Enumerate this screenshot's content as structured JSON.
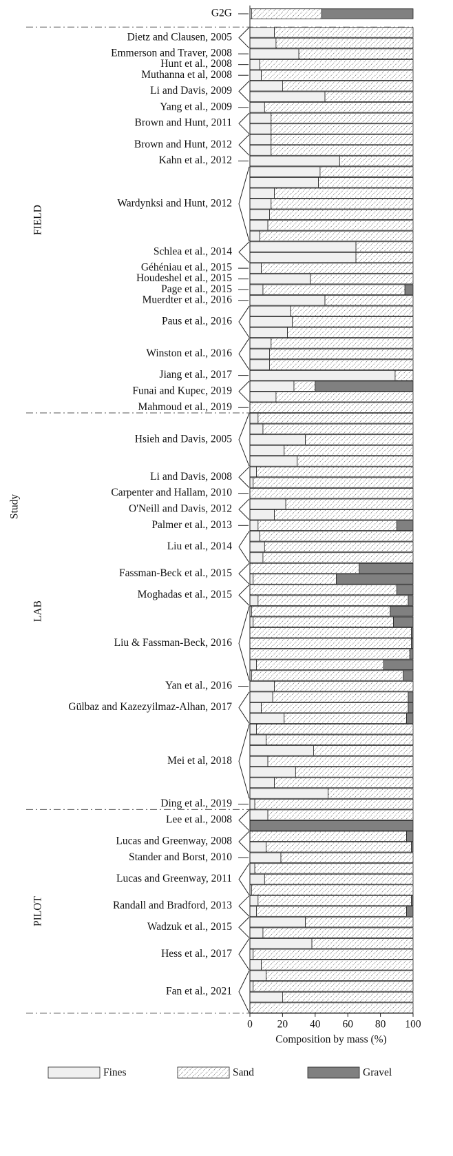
{
  "chart_data": {
    "type": "grouped-stacked-barh",
    "xlabel": "Composition by mass (%)",
    "ylabel": "Study",
    "xlim": [
      0,
      100
    ],
    "xticks": [
      0,
      20,
      40,
      60,
      80,
      100
    ],
    "series": [
      {
        "key": "fines",
        "name": "Fines",
        "color": "#f0f0f0",
        "hatch": false
      },
      {
        "key": "sand",
        "name": "Sand",
        "color": "#ffffff",
        "hatch": true
      },
      {
        "key": "gravel",
        "name": "Gravel",
        "color": "#808080",
        "hatch": false
      }
    ],
    "groups": [
      {
        "name": null,
        "studies": [
          {
            "label": "G2G",
            "fines": [
              1
            ],
            "sand": [
              43
            ],
            "gravel": [
              56
            ]
          }
        ]
      },
      {
        "name": "FIELD",
        "studies": [
          {
            "label": "Dietz and Clausen, 2005",
            "fines": [
              15,
              16
            ],
            "sand": [
              85,
              84
            ],
            "gravel": [
              0,
              0
            ]
          },
          {
            "label": "Emmerson and Traver, 2008",
            "fines": [
              30
            ],
            "sand": [
              70
            ],
            "gravel": [
              0
            ]
          },
          {
            "label": "Hunt et al., 2008",
            "fines": [
              6
            ],
            "sand": [
              94
            ],
            "gravel": [
              0
            ]
          },
          {
            "label": "Muthanna et al, 2008",
            "fines": [
              7
            ],
            "sand": [
              93
            ],
            "gravel": [
              0
            ]
          },
          {
            "label": "Li and Davis, 2009",
            "fines": [
              20,
              46
            ],
            "sand": [
              80,
              54
            ],
            "gravel": [
              0,
              0
            ]
          },
          {
            "label": "Yang et al., 2009",
            "fines": [
              9
            ],
            "sand": [
              91
            ],
            "gravel": [
              0
            ]
          },
          {
            "label": "Brown and Hunt, 2011",
            "fines": [
              13,
              13
            ],
            "sand": [
              87,
              87
            ],
            "gravel": [
              0,
              0
            ]
          },
          {
            "label": "Brown and Hunt, 2012",
            "fines": [
              13,
              13
            ],
            "sand": [
              87,
              87
            ],
            "gravel": [
              0,
              0
            ]
          },
          {
            "label": "Kahn et al., 2012",
            "fines": [
              55
            ],
            "sand": [
              45
            ],
            "gravel": [
              0
            ]
          },
          {
            "label": "Wardynksi and Hunt, 2012",
            "fines": [
              43,
              42,
              15,
              13,
              12,
              11,
              6
            ],
            "sand": [
              57,
              58,
              85,
              87,
              88,
              89,
              94
            ],
            "gravel": [
              0,
              0,
              0,
              0,
              0,
              0,
              0
            ]
          },
          {
            "label": "Schlea et al., 2014",
            "fines": [
              65,
              65
            ],
            "sand": [
              35,
              35
            ],
            "gravel": [
              0,
              0
            ]
          },
          {
            "label": "Géhéniau et al., 2015",
            "fines": [
              7
            ],
            "sand": [
              93
            ],
            "gravel": [
              0
            ]
          },
          {
            "label": "Houdeshel et al., 2015",
            "fines": [
              37
            ],
            "sand": [
              63
            ],
            "gravel": [
              0
            ]
          },
          {
            "label": "Page et al., 2015",
            "fines": [
              8
            ],
            "sand": [
              87
            ],
            "gravel": [
              5
            ]
          },
          {
            "label": "Muerdter et al., 2016",
            "fines": [
              46
            ],
            "sand": [
              54
            ],
            "gravel": [
              0
            ]
          },
          {
            "label": "Paus et al., 2016",
            "fines": [
              25,
              26,
              23
            ],
            "sand": [
              75,
              74,
              77
            ],
            "gravel": [
              0,
              0,
              0
            ]
          },
          {
            "label": "Winston et al., 2016",
            "fines": [
              13,
              12,
              12
            ],
            "sand": [
              87,
              88,
              88
            ],
            "gravel": [
              0,
              0,
              0
            ]
          },
          {
            "label": "Jiang et al., 2017",
            "fines": [
              89
            ],
            "sand": [
              11
            ],
            "gravel": [
              0
            ]
          },
          {
            "label": "Funai and Kupec, 2019",
            "fines": [
              27,
              16
            ],
            "sand": [
              13,
              84
            ],
            "gravel": [
              60,
              0
            ]
          },
          {
            "label": "Mahmoud et al., 2019",
            "fines": [
              0
            ],
            "sand": [
              100
            ],
            "gravel": [
              0
            ]
          }
        ]
      },
      {
        "name": "LAB",
        "studies": [
          {
            "label": "Hsieh and Davis, 2005",
            "fines": [
              5,
              8,
              34,
              21,
              29
            ],
            "sand": [
              95,
              92,
              66,
              79,
              71
            ],
            "gravel": [
              0,
              0,
              0,
              0,
              0
            ]
          },
          {
            "label": "Li and Davis, 2008",
            "fines": [
              4,
              2
            ],
            "sand": [
              96,
              98
            ],
            "gravel": [
              0,
              0
            ]
          },
          {
            "label": "Carpenter and Hallam, 2010",
            "fines": [
              0
            ],
            "sand": [
              100
            ],
            "gravel": [
              0
            ]
          },
          {
            "label": "O'Neill and Davis, 2012",
            "fines": [
              22,
              15
            ],
            "sand": [
              78,
              85
            ],
            "gravel": [
              0,
              0
            ]
          },
          {
            "label": "Palmer et al., 2013",
            "fines": [
              5
            ],
            "sand": [
              85
            ],
            "gravel": [
              10
            ]
          },
          {
            "label": "Liu et al., 2014",
            "fines": [
              6,
              9,
              8
            ],
            "sand": [
              94,
              91,
              92
            ],
            "gravel": [
              0,
              0,
              0
            ]
          },
          {
            "label": "Fassman-Beck et al., 2015",
            "fines": [
              0,
              2
            ],
            "sand": [
              67,
              51
            ],
            "gravel": [
              33,
              47
            ]
          },
          {
            "label": "Moghadas et al., 2015",
            "fines": [
              0,
              5
            ],
            "sand": [
              90,
              92
            ],
            "gravel": [
              10,
              3
            ]
          },
          {
            "label": "Liu & Fassman-Beck, 2016",
            "fines": [
              1,
              2,
              0,
              0,
              0,
              4,
              1
            ],
            "sand": [
              85,
              86,
              99,
              99,
              98,
              78,
              93
            ],
            "gravel": [
              14,
              12,
              1,
              1,
              2,
              18,
              6
            ]
          },
          {
            "label": "Yan et al., 2016",
            "fines": [
              15
            ],
            "sand": [
              85
            ],
            "gravel": [
              0
            ]
          },
          {
            "label": "Gülbaz and Kazezyilmaz-Alhan, 2017",
            "fines": [
              14,
              7,
              21
            ],
            "sand": [
              83,
              90,
              75
            ],
            "gravel": [
              3,
              3,
              4
            ]
          },
          {
            "label": "Mei et al, 2018",
            "fines": [
              4,
              10,
              39,
              11,
              28,
              15,
              48
            ],
            "sand": [
              96,
              90,
              61,
              89,
              72,
              85,
              52
            ],
            "gravel": [
              0,
              0,
              0,
              0,
              0,
              0,
              0
            ]
          },
          {
            "label": "Ding et al., 2019",
            "fines": [
              3
            ],
            "sand": [
              97
            ],
            "gravel": [
              0
            ]
          }
        ]
      },
      {
        "name": "PILOT",
        "studies": [
          {
            "label": "Lee et al., 2008",
            "fines": [
              11,
              0
            ],
            "sand": [
              89,
              0
            ],
            "gravel": [
              0,
              100
            ]
          },
          {
            "label": "Lucas and Greenway, 2008",
            "fines": [
              0,
              10
            ],
            "sand": [
              96,
              89
            ],
            "gravel": [
              4,
              1
            ]
          },
          {
            "label": "Stander and Borst, 2010",
            "fines": [
              19
            ],
            "sand": [
              81
            ],
            "gravel": [
              0
            ]
          },
          {
            "label": "Lucas and Greenway, 2011",
            "fines": [
              3,
              9,
              1
            ],
            "sand": [
              97,
              91,
              99
            ],
            "gravel": [
              0,
              0,
              0
            ]
          },
          {
            "label": "Randall and Bradford, 2013",
            "fines": [
              5,
              4
            ],
            "sand": [
              94,
              92
            ],
            "gravel": [
              1,
              4
            ]
          },
          {
            "label": "Wadzuk et al., 2015",
            "fines": [
              34,
              8
            ],
            "sand": [
              66,
              92
            ],
            "gravel": [
              0,
              0
            ]
          },
          {
            "label": "Hess et al., 2017",
            "fines": [
              38,
              2,
              7
            ],
            "sand": [
              62,
              98,
              93
            ],
            "gravel": [
              0,
              0,
              0
            ]
          },
          {
            "label": "Fan et al., 2021",
            "fines": [
              10,
              2,
              20,
              0
            ],
            "sand": [
              90,
              98,
              80,
              100
            ],
            "gravel": [
              0,
              0,
              0,
              0
            ]
          }
        ]
      }
    ]
  }
}
